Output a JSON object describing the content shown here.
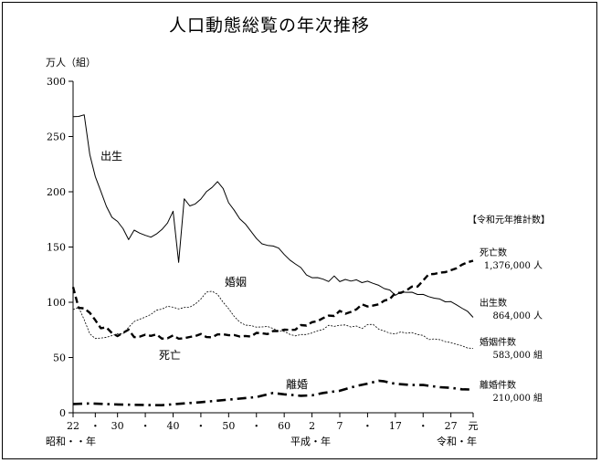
{
  "chart_data": {
    "type": "line",
    "title": "人口動態総覧の年次推移",
    "ylabel": "万人（組）",
    "ylim": [
      0,
      300
    ],
    "yticks": [
      0,
      50,
      100,
      150,
      200,
      250,
      300
    ],
    "xlim": [
      1947,
      2019
    ],
    "x_tick_labels": [
      {
        "x": 1947,
        "label": "22"
      },
      {
        "x": 1951,
        "label": "・"
      },
      {
        "x": 1955,
        "label": "30"
      },
      {
        "x": 1960,
        "label": "・"
      },
      {
        "x": 1965,
        "label": "40"
      },
      {
        "x": 1970,
        "label": "・"
      },
      {
        "x": 1975,
        "label": "50"
      },
      {
        "x": 1980,
        "label": "・"
      },
      {
        "x": 1985,
        "label": "60"
      },
      {
        "x": 1990,
        "label": "2"
      },
      {
        "x": 1995,
        "label": "7"
      },
      {
        "x": 2000,
        "label": "・"
      },
      {
        "x": 2005,
        "label": "17"
      },
      {
        "x": 2010,
        "label": "・"
      },
      {
        "x": 2015,
        "label": "27"
      },
      {
        "x": 2019,
        "label": "元"
      }
    ],
    "era_labels": [
      "昭和・・年",
      "平成・年",
      "令和・年"
    ],
    "legend_title": "【令和元年推計数】",
    "series": [
      {
        "name": "出生",
        "style": "solid",
        "end_label": "出生数",
        "end_value": "864,000 人",
        "x": [
          1947,
          1948,
          1949,
          1950,
          1951,
          1952,
          1953,
          1954,
          1955,
          1956,
          1957,
          1958,
          1959,
          1960,
          1961,
          1962,
          1963,
          1964,
          1965,
          1966,
          1967,
          1968,
          1969,
          1970,
          1971,
          1972,
          1973,
          1974,
          1975,
          1976,
          1977,
          1978,
          1979,
          1980,
          1981,
          1982,
          1983,
          1984,
          1985,
          1986,
          1987,
          1988,
          1989,
          1990,
          1991,
          1992,
          1993,
          1994,
          1995,
          1996,
          1997,
          1998,
          1999,
          2000,
          2001,
          2002,
          2003,
          2004,
          2005,
          2006,
          2007,
          2008,
          2009,
          2010,
          2011,
          2012,
          2013,
          2014,
          2015,
          2016,
          2017,
          2018,
          2019
        ],
        "values": [
          267.9,
          268.2,
          269.7,
          233.8,
          213.8,
          200.5,
          186.8,
          176.9,
          173.1,
          166.5,
          156.7,
          165.3,
          162.6,
          160.6,
          158.9,
          161.8,
          165.9,
          171.7,
          182.4,
          136.1,
          193.6,
          187.2,
          189.0,
          193.4,
          200.1,
          203.9,
          209.2,
          203.0,
          190.1,
          183.3,
          175.5,
          170.9,
          164.3,
          157.7,
          152.9,
          151.5,
          150.9,
          149.0,
          143.2,
          138.3,
          134.7,
          131.4,
          124.7,
          122.2,
          122.3,
          120.9,
          118.8,
          123.8,
          118.7,
          120.7,
          119.2,
          120.3,
          117.8,
          119.1,
          117.1,
          115.4,
          112.4,
          111.1,
          106.3,
          109.3,
          109.0,
          109.1,
          107.0,
          107.1,
          105.1,
          103.7,
          103.0,
          100.4,
          100.6,
          97.7,
          94.6,
          91.8,
          86.4
        ]
      },
      {
        "name": "死亡",
        "style": "dashed-bold",
        "end_label": "死亡数",
        "end_value": "1,376,000 人",
        "x": [
          1947,
          1948,
          1949,
          1950,
          1951,
          1952,
          1953,
          1954,
          1955,
          1956,
          1957,
          1958,
          1959,
          1960,
          1961,
          1962,
          1963,
          1964,
          1965,
          1966,
          1967,
          1968,
          1969,
          1970,
          1971,
          1972,
          1973,
          1974,
          1975,
          1976,
          1977,
          1978,
          1979,
          1980,
          1981,
          1982,
          1983,
          1984,
          1985,
          1986,
          1987,
          1988,
          1989,
          1990,
          1991,
          1992,
          1993,
          1994,
          1995,
          1996,
          1997,
          1998,
          1999,
          2000,
          2001,
          2002,
          2003,
          2004,
          2005,
          2006,
          2007,
          2008,
          2009,
          2010,
          2011,
          2012,
          2013,
          2014,
          2015,
          2016,
          2017,
          2018,
          2019
        ],
        "values": [
          113.8,
          95.0,
          94.5,
          90.5,
          83.9,
          76.5,
          77.3,
          72.1,
          69.4,
          72.4,
          75.2,
          68.4,
          68.9,
          70.7,
          69.6,
          71.0,
          67.1,
          67.4,
          70.0,
          67.0,
          67.5,
          68.6,
          69.4,
          71.3,
          68.5,
          68.3,
          70.9,
          71.0,
          70.2,
          70.3,
          69.0,
          69.5,
          69.0,
          72.3,
          72.0,
          71.2,
          74.0,
          74.0,
          75.2,
          75.0,
          75.1,
          79.3,
          78.9,
          82.0,
          83.0,
          85.7,
          87.9,
          87.6,
          92.2,
          89.6,
          91.3,
          93.6,
          98.2,
          96.2,
          97.0,
          98.2,
          101.5,
          102.9,
          108.4,
          108.5,
          110.8,
          114.2,
          114.2,
          119.7,
          125.3,
          125.6,
          126.8,
          127.3,
          129.0,
          130.8,
          134.0,
          136.2,
          137.6
        ]
      },
      {
        "name": "婚姻",
        "style": "thin-dashed",
        "end_label": "婚姻件数",
        "end_value": "583,000 組",
        "x": [
          1947,
          1948,
          1949,
          1950,
          1951,
          1952,
          1953,
          1954,
          1955,
          1956,
          1957,
          1958,
          1959,
          1960,
          1961,
          1962,
          1963,
          1964,
          1965,
          1966,
          1967,
          1968,
          1969,
          1970,
          1971,
          1972,
          1973,
          1974,
          1975,
          1976,
          1977,
          1978,
          1979,
          1980,
          1981,
          1982,
          1983,
          1984,
          1985,
          1986,
          1987,
          1988,
          1989,
          1990,
          1991,
          1992,
          1993,
          1994,
          1995,
          1996,
          1997,
          1998,
          1999,
          2000,
          2001,
          2002,
          2003,
          2004,
          2005,
          2006,
          2007,
          2008,
          2009,
          2010,
          2011,
          2012,
          2013,
          2014,
          2015,
          2016,
          2017,
          2018,
          2019
        ],
        "values": [
          93.4,
          95.4,
          84.2,
          71.5,
          67.2,
          67.6,
          68.3,
          69.8,
          71.5,
          71.6,
          77.3,
          82.6,
          84.7,
          86.6,
          89.0,
          92.8,
          93.8,
          96.4,
          95.5,
          94.0,
          95.3,
          95.6,
          98.4,
          102.9,
          109.2,
          110.0,
          107.2,
          100.0,
          94.2,
          87.2,
          82.1,
          79.3,
          78.9,
          77.5,
          77.7,
          78.1,
          76.3,
          73.9,
          73.6,
          71.0,
          69.6,
          70.8,
          70.8,
          72.2,
          74.2,
          75.4,
          79.2,
          78.2,
          79.2,
          79.5,
          77.6,
          78.5,
          76.2,
          79.8,
          80.0,
          75.7,
          74.0,
          72.0,
          71.4,
          73.1,
          72.0,
          72.6,
          70.8,
          70.0,
          66.2,
          66.9,
          66.1,
          64.4,
          63.5,
          62.0,
          60.7,
          58.6,
          58.3
        ]
      },
      {
        "name": "離婚",
        "style": "dash-dot-bold",
        "end_label": "離婚件数",
        "end_value": "210,000 組",
        "x": [
          1947,
          1950,
          1955,
          1960,
          1963,
          1965,
          1970,
          1975,
          1980,
          1983,
          1985,
          1988,
          1990,
          1992,
          1995,
          1998,
          2000,
          2002,
          2003,
          2005,
          2008,
          2010,
          2013,
          2015,
          2017,
          2019
        ],
        "values": [
          7.9,
          8.4,
          7.5,
          7.0,
          6.9,
          7.7,
          9.6,
          11.9,
          14.2,
          17.9,
          16.7,
          15.4,
          15.8,
          17.9,
          19.9,
          24.3,
          26.4,
          29.0,
          28.4,
          26.2,
          25.1,
          25.1,
          23.1,
          22.6,
          21.2,
          21.0
        ]
      }
    ]
  }
}
